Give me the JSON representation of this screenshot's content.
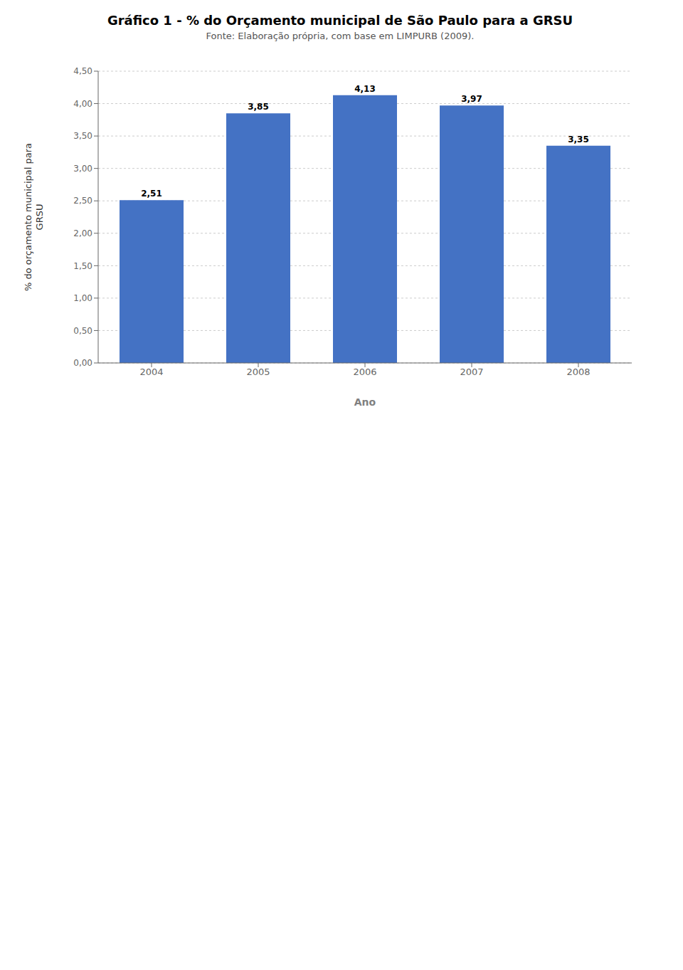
{
  "chart_data": {
    "type": "bar",
    "title": "Gráfico 1 - % do Orçamento municipal de São Paulo para a GRSU",
    "subtitle": "Fonte: Elaboração própria, com base em LIMPURB (2009).",
    "categories": [
      "2004",
      "2005",
      "2006",
      "2007",
      "2008"
    ],
    "values": [
      2.51,
      3.85,
      4.13,
      3.97,
      3.35
    ],
    "value_labels": [
      "2,51",
      "3,85",
      "4,13",
      "3,97",
      "3,35"
    ],
    "data_labels": true,
    "color": "#4472C4",
    "xlabel": "Ano",
    "ylabel": "% do orçamento municipal para\nGRSU",
    "ylim": [
      0.0,
      4.5
    ],
    "yticks": [
      {
        "value": 0.0,
        "label": "0,00"
      },
      {
        "value": 0.5,
        "label": "0,50"
      },
      {
        "value": 1.0,
        "label": "1,00"
      },
      {
        "value": 1.5,
        "label": "1,50"
      },
      {
        "value": 2.0,
        "label": "2,00"
      },
      {
        "value": 2.5,
        "label": "2,50"
      },
      {
        "value": 3.0,
        "label": "3,00"
      },
      {
        "value": 3.5,
        "label": "3,50"
      },
      {
        "value": 4.0,
        "label": "4,00"
      },
      {
        "value": 4.5,
        "label": "4,50"
      }
    ],
    "grid": true
  }
}
